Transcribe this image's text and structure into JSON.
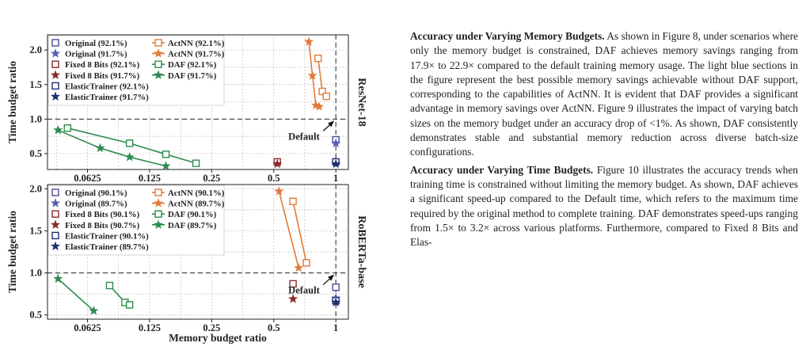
{
  "chart_data": [
    {
      "type": "scatter",
      "side_label": "ResNet-18",
      "xlabel": "",
      "ylabel": "Time budget ratio",
      "x_scale": "log2",
      "xlim": [
        0.04,
        1.15
      ],
      "ylim": [
        0.27,
        2.22
      ],
      "x_ticks": [
        0.0625,
        0.125,
        0.25,
        0.5,
        1
      ],
      "x_tick_labels": [
        "0.0625",
        "0.125",
        "0.25",
        "0.5",
        "1"
      ],
      "y_ticks": [
        0.5,
        1.0,
        1.5,
        2.0
      ],
      "y_tick_labels": [
        "0.5",
        "1.0",
        "1.5",
        "2.0"
      ],
      "grid": true,
      "legend_placement": "top-left",
      "annotation": "Default",
      "series": [
        {
          "name": "Original (92.1%)",
          "color": "#4a4a9a",
          "marker": "square",
          "line": false,
          "points": [
            [
              1.0,
              0.7
            ]
          ]
        },
        {
          "name": "Original (91.7%)",
          "color": "#5a5ab5",
          "marker": "star",
          "line": false,
          "points": [
            [
              1.0,
              0.65
            ]
          ]
        },
        {
          "name": "Fixed 8 Bits (92.1%)",
          "color": "#8b2a2a",
          "marker": "square",
          "line": false,
          "points": [
            [
              0.52,
              0.38
            ]
          ]
        },
        {
          "name": "Fixed 8 Bits (91.7%)",
          "color": "#8b2a2a",
          "marker": "star",
          "line": false,
          "points": [
            [
              0.52,
              0.35
            ]
          ]
        },
        {
          "name": "ElasticTrainer (92.1%)",
          "color": "#1f2f6f",
          "marker": "square",
          "line": false,
          "points": [
            [
              1.0,
              0.38
            ]
          ]
        },
        {
          "name": "ElasticTrainer (91.7%)",
          "color": "#1f2f6f",
          "marker": "star",
          "line": false,
          "points": [
            [
              1.0,
              0.35
            ]
          ]
        },
        {
          "name": "ActNN (92.1%)",
          "color": "#e07b39",
          "marker": "square",
          "line": true,
          "points": [
            [
              0.82,
              1.88
            ],
            [
              0.86,
              1.4
            ],
            [
              0.9,
              1.33
            ]
          ]
        },
        {
          "name": "ActNN (91.7%)",
          "color": "#e07b39",
          "marker": "star",
          "line": true,
          "points": [
            [
              0.74,
              2.12
            ],
            [
              0.77,
              1.63
            ],
            [
              0.8,
              1.2
            ],
            [
              0.83,
              1.18
            ]
          ]
        },
        {
          "name": "DAF (92.1%)",
          "color": "#2e8b4e",
          "marker": "square",
          "line": true,
          "points": [
            [
              0.05,
              0.87
            ],
            [
              0.1,
              0.65
            ],
            [
              0.15,
              0.49
            ],
            [
              0.21,
              0.36
            ]
          ]
        },
        {
          "name": "DAF (91.7%)",
          "color": "#2e8b4e",
          "marker": "star",
          "line": true,
          "points": [
            [
              0.045,
              0.84
            ],
            [
              0.072,
              0.58
            ],
            [
              0.1,
              0.45
            ],
            [
              0.15,
              0.32
            ]
          ]
        }
      ]
    },
    {
      "type": "scatter",
      "side_label": "RoBERTa-base",
      "xlabel": "Memory budget ratio",
      "ylabel": "Time budget ratio",
      "x_scale": "log2",
      "xlim": [
        0.04,
        1.15
      ],
      "ylim": [
        0.45,
        2.05
      ],
      "x_ticks": [
        0.0625,
        0.125,
        0.25,
        0.5,
        1
      ],
      "x_tick_labels": [
        "0.0625",
        "0.125",
        "0.25",
        "0.5",
        "1"
      ],
      "y_ticks": [
        0.5,
        1.0,
        1.5,
        2.0
      ],
      "y_tick_labels": [
        "0.5",
        "1.0",
        "1.5",
        "2.0"
      ],
      "grid": true,
      "legend_placement": "top-left",
      "annotation": "Default",
      "series": [
        {
          "name": "Original (90.1%)",
          "color": "#4a4a9a",
          "marker": "square",
          "line": false,
          "points": [
            [
              1.0,
              0.83
            ]
          ]
        },
        {
          "name": "Original (89.7%)",
          "color": "#5a5ab5",
          "marker": "star",
          "line": false,
          "points": [
            [
              1.0,
              0.7
            ]
          ]
        },
        {
          "name": "Fixed 8 Bits (90.1%)",
          "color": "#8b2a2a",
          "marker": "square",
          "line": false,
          "points": [
            [
              0.62,
              0.87
            ]
          ]
        },
        {
          "name": "Fixed 8 Bits (90.7%)",
          "color": "#8b2a2a",
          "marker": "star",
          "line": false,
          "points": [
            [
              0.62,
              0.69
            ]
          ]
        },
        {
          "name": "ElasticTrainer (90.1%)",
          "color": "#1f2f6f",
          "marker": "square",
          "line": false,
          "points": [
            [
              1.0,
              0.67
            ]
          ]
        },
        {
          "name": "ElasticTrainer (89.7%)",
          "color": "#1f2f6f",
          "marker": "star",
          "line": false,
          "points": [
            [
              1.0,
              0.65
            ]
          ]
        },
        {
          "name": "ActNN (90.1%)",
          "color": "#e07b39",
          "marker": "square",
          "line": true,
          "points": [
            [
              0.62,
              1.85
            ],
            [
              0.72,
              1.12
            ]
          ]
        },
        {
          "name": "ActNN (89.7%)",
          "color": "#e07b39",
          "marker": "star",
          "line": true,
          "points": [
            [
              0.53,
              1.97
            ],
            [
              0.66,
              1.06
            ]
          ]
        },
        {
          "name": "DAF (90.1%)",
          "color": "#2e8b4e",
          "marker": "square",
          "line": true,
          "points": [
            [
              0.08,
              0.85
            ],
            [
              0.095,
              0.65
            ],
            [
              0.1,
              0.62
            ]
          ]
        },
        {
          "name": "DAF (89.7%)",
          "color": "#2e8b4e",
          "marker": "star",
          "line": true,
          "points": [
            [
              0.045,
              0.93
            ],
            [
              0.067,
              0.55
            ]
          ]
        }
      ]
    }
  ],
  "text": {
    "p1_head": "Accuracy under Varying Memory Budgets.",
    "p1_body": " As shown in Figure 8, under scenarios where only the memory budget is constrained, DAF achieves memory savings ranging from 17.9× to 22.9× compared to the default training memory usage. The light blue sections in the figure represent the best possible memory savings achievable without DAF support, corresponding to the capabilities of ActNN. It is evident that DAF provides a significant advantage in memory savings over ActNN. Figure 9 illustrates the impact of varying batch sizes on the memory budget under an accuracy drop of <1%. As shown, DAF consistently demonstrates stable and substantial memory reduction across diverse batch-size configurations.",
    "p2_head": "Accuracy under Varying Time Budgets.",
    "p2_body": " Figure 10 illustrates the accuracy trends when training time is constrained without limiting the memory budget. As shown, DAF achieves a significant speed-up compared to the Default time, which refers to the maximum time required by the original method to complete training. DAF demonstrates speed-ups ranging from 1.5× to 3.2× across various platforms. Furthermore, compared to Fixed 8 Bits and Elas-"
  }
}
